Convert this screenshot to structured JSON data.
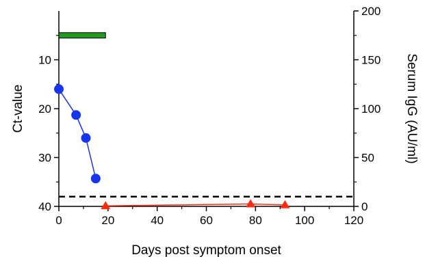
{
  "chart_data": {
    "type": "line",
    "xlabel": "Days post symptom onset",
    "ylabel_left": "Ct-value",
    "ylabel_right": "Serum IgG (AU/ml)",
    "xlim": [
      0,
      120
    ],
    "x_ticks": [
      0,
      20,
      40,
      60,
      80,
      100,
      120
    ],
    "ylim_left": [
      40,
      0
    ],
    "y_left_inverted": true,
    "y_left_ticks": [
      10,
      20,
      30,
      40
    ],
    "ylim_right": [
      0,
      200
    ],
    "y_right_ticks": [
      0,
      50,
      100,
      150,
      200
    ],
    "grid": false,
    "series": [
      {
        "axis": "left",
        "marker": "circle",
        "color": "#1535f0",
        "x": [
          0,
          7,
          11,
          15
        ],
        "y": [
          16,
          21.3,
          26,
          34.3
        ]
      },
      {
        "axis": "right",
        "marker": "triangle",
        "color": "#ff2a10",
        "x": [
          19,
          78,
          92
        ],
        "y": [
          0.5,
          2.5,
          1.5
        ]
      }
    ],
    "threshold": {
      "axis": "left",
      "y": 38,
      "style": "dashed",
      "color": "#000000"
    },
    "bar": {
      "x_start": 0,
      "x_end": 19,
      "y": 5,
      "color": "#1f9a1f"
    }
  }
}
